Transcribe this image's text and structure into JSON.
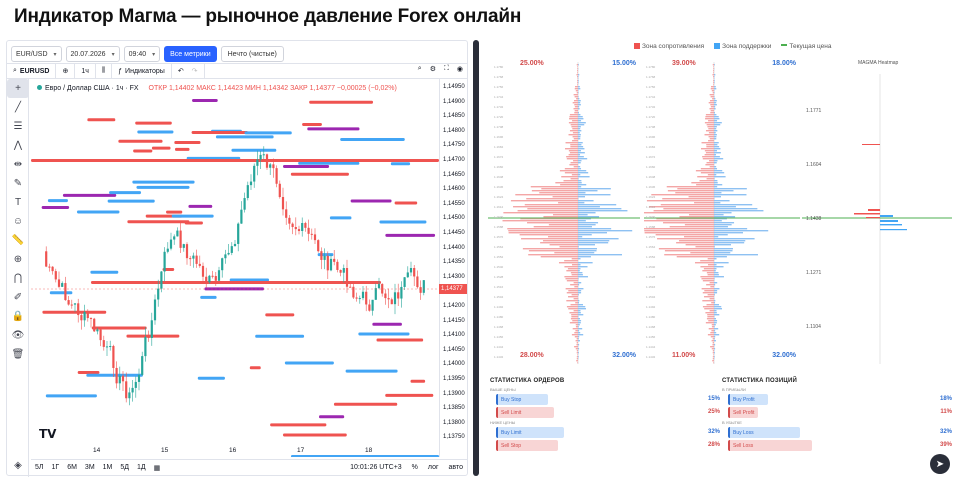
{
  "page_title": "Индикатор Магма — рыночное давление Forex онлайн",
  "controls": {
    "pair": "EUR/USD",
    "date": "20.07.2026",
    "time": "09:40",
    "btn_all_metrics": "Все метрики",
    "btn_clean": "Нечто (чистые)"
  },
  "toolbar": {
    "symbol": "EURUSD",
    "interval": "1ч",
    "indicators": "Индикаторы"
  },
  "legend": {
    "name": "Евро / Доллар США · 1ч · FX",
    "ohlc": "ОТКР 1,14402  МАКС 1,14423  МИН 1,14342  ЗАКР 1,14377  −0,00025 (−0,02%)"
  },
  "price_axis": [
    "1,14950",
    "1,14900",
    "1,14850",
    "1,14800",
    "1,14750",
    "1,14700",
    "1,14650",
    "1,14600",
    "1,14550",
    "1,14500",
    "1,14450",
    "1,14400",
    "1,14377",
    "1,14350",
    "1,14300",
    "1,14250",
    "1,14200",
    "1,14150",
    "1,14100",
    "1,14050",
    "1,14000",
    "1,13950",
    "1,13900",
    "1,13850",
    "1,13800",
    "1,13750"
  ],
  "current_price": "1,14377",
  "time_axis": [
    "14",
    "15",
    "16",
    "17",
    "18"
  ],
  "bottom_toolbar": {
    "ranges": [
      "5Л",
      "1Г",
      "6М",
      "3М",
      "1М",
      "5Д",
      "1Д"
    ],
    "clock": "10:01:26 UTC+3",
    "pct": "%",
    "log": "лог",
    "auto": "авто"
  },
  "right_legend": {
    "resistance": "Зона сопротивления",
    "support": "Зона поддержки",
    "current": "Текущая цена"
  },
  "mini_charts": [
    {
      "tl": "25.00%",
      "tr": "15.00%",
      "bl": "28.00%",
      "br": "32.00%"
    },
    {
      "tl": "39.00%",
      "tr": "18.00%",
      "bl": "11.00%",
      "br": "32.00%"
    }
  ],
  "heatmap": {
    "title": "MAGMA Heatmap",
    "levels": [
      "1.1771",
      "1.1604",
      "1.1438",
      "1.1271",
      "1.1104"
    ]
  },
  "stats_orders": {
    "title": "СТАТИСТИКА ОРДЕРОВ",
    "sub1": "ВЫШЕ ЦЕНЫ",
    "sub2": "НИЖЕ ЦЕНЫ",
    "rows": [
      {
        "label": "Buy Stop",
        "value": "15%"
      },
      {
        "label": "Sell Limit",
        "value": "25%"
      },
      {
        "label": "Buy Limit",
        "value": "32%"
      },
      {
        "label": "Sell Stop",
        "value": "28%"
      }
    ]
  },
  "stats_positions": {
    "title": "СТАТИСТИКА ПОЗИЦИЙ",
    "sub1": "В ПРИБЫЛИ",
    "sub2": "В УБЫТКЕ",
    "rows": [
      {
        "label": "Buy Profit",
        "value": "18%"
      },
      {
        "label": "Sell Profit",
        "value": "11%"
      },
      {
        "label": "Buy Loss",
        "value": "32%"
      },
      {
        "label": "Sell Loss",
        "value": "39%"
      }
    ]
  }
}
